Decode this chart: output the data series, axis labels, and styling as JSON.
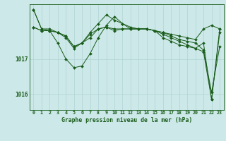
{
  "title": "Graphe pression niveau de la mer (hPa)",
  "background_color": "#cce8e8",
  "plot_bg_color": "#cce8e8",
  "line_color": "#1a5c1a",
  "grid_color": "#b0d4d4",
  "x_labels": [
    "0",
    "1",
    "2",
    "3",
    "4",
    "5",
    "6",
    "7",
    "8",
    "9",
    "10",
    "11",
    "12",
    "13",
    "14",
    "15",
    "16",
    "17",
    "18",
    "19",
    "20",
    "21",
    "22",
    "23"
  ],
  "xlim": [
    -0.5,
    23.5
  ],
  "ylim": [
    1015.55,
    1018.55
  ],
  "yticks": [
    1016,
    1017
  ],
  "series1": [
    1018.4,
    1017.85,
    1017.85,
    1017.75,
    1017.6,
    1017.3,
    1017.45,
    1017.75,
    1018.0,
    1018.25,
    1018.1,
    1018.0,
    1017.9,
    1017.85,
    1017.85,
    1017.8,
    1017.75,
    1017.7,
    1017.65,
    1017.6,
    1017.55,
    1017.85,
    1017.95,
    1017.85
  ],
  "series2": [
    1017.9,
    1017.8,
    1017.8,
    1017.75,
    1017.65,
    1017.35,
    1017.45,
    1017.7,
    1017.85,
    1017.9,
    1017.85,
    1017.85,
    1017.85,
    1017.85,
    1017.85,
    1017.8,
    1017.75,
    1017.65,
    1017.55,
    1017.5,
    1017.45,
    1017.25,
    1016.05,
    1017.35
  ],
  "series3": [
    1018.4,
    1017.85,
    1017.8,
    1017.45,
    1017.0,
    1016.75,
    1016.8,
    1017.15,
    1017.6,
    1017.95,
    1018.2,
    1018.0,
    1017.85,
    1017.85,
    1017.85,
    1017.8,
    1017.6,
    1017.5,
    1017.4,
    1017.35,
    1017.3,
    1017.2,
    1015.85,
    1017.85
  ],
  "series4": [
    1017.9,
    1017.8,
    1017.8,
    1017.75,
    1017.65,
    1017.35,
    1017.45,
    1017.6,
    1017.85,
    1017.9,
    1017.8,
    1017.85,
    1017.85,
    1017.85,
    1017.85,
    1017.8,
    1017.7,
    1017.6,
    1017.5,
    1017.4,
    1017.3,
    1017.45,
    1015.85,
    1017.75
  ]
}
